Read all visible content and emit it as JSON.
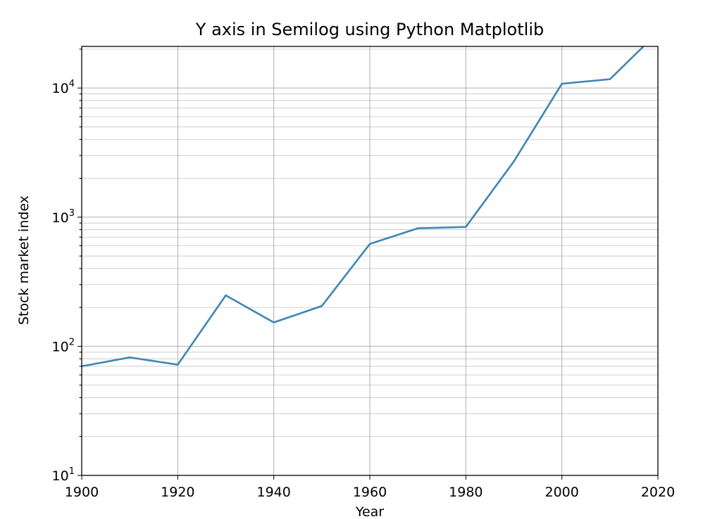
{
  "chart_data": {
    "type": "line",
    "title": "Y axis in Semilog using Python Matplotlib",
    "xlabel": "Year",
    "ylabel": "Stock market index",
    "xlim": [
      1900,
      2020
    ],
    "ylim": [
      10,
      21000
    ],
    "yscale": "log",
    "grid": "both (major and minor)",
    "x_ticks": [
      1900,
      1920,
      1940,
      1960,
      1980,
      2000,
      2020
    ],
    "y_ticks": [
      {
        "base": "10",
        "exp": "1"
      },
      {
        "base": "10",
        "exp": "2"
      },
      {
        "base": "10",
        "exp": "3"
      },
      {
        "base": "10",
        "exp": "4"
      }
    ],
    "series": [
      {
        "color": "#3f86b4",
        "x": [
          1900,
          1910,
          1920,
          1930,
          1940,
          1950,
          1960,
          1970,
          1980,
          1990,
          2000,
          2010,
          2017
        ],
        "y": [
          70,
          82,
          72,
          248,
          153,
          205,
          620,
          820,
          840,
          2700,
          10800,
          11700,
          21000
        ]
      }
    ]
  }
}
